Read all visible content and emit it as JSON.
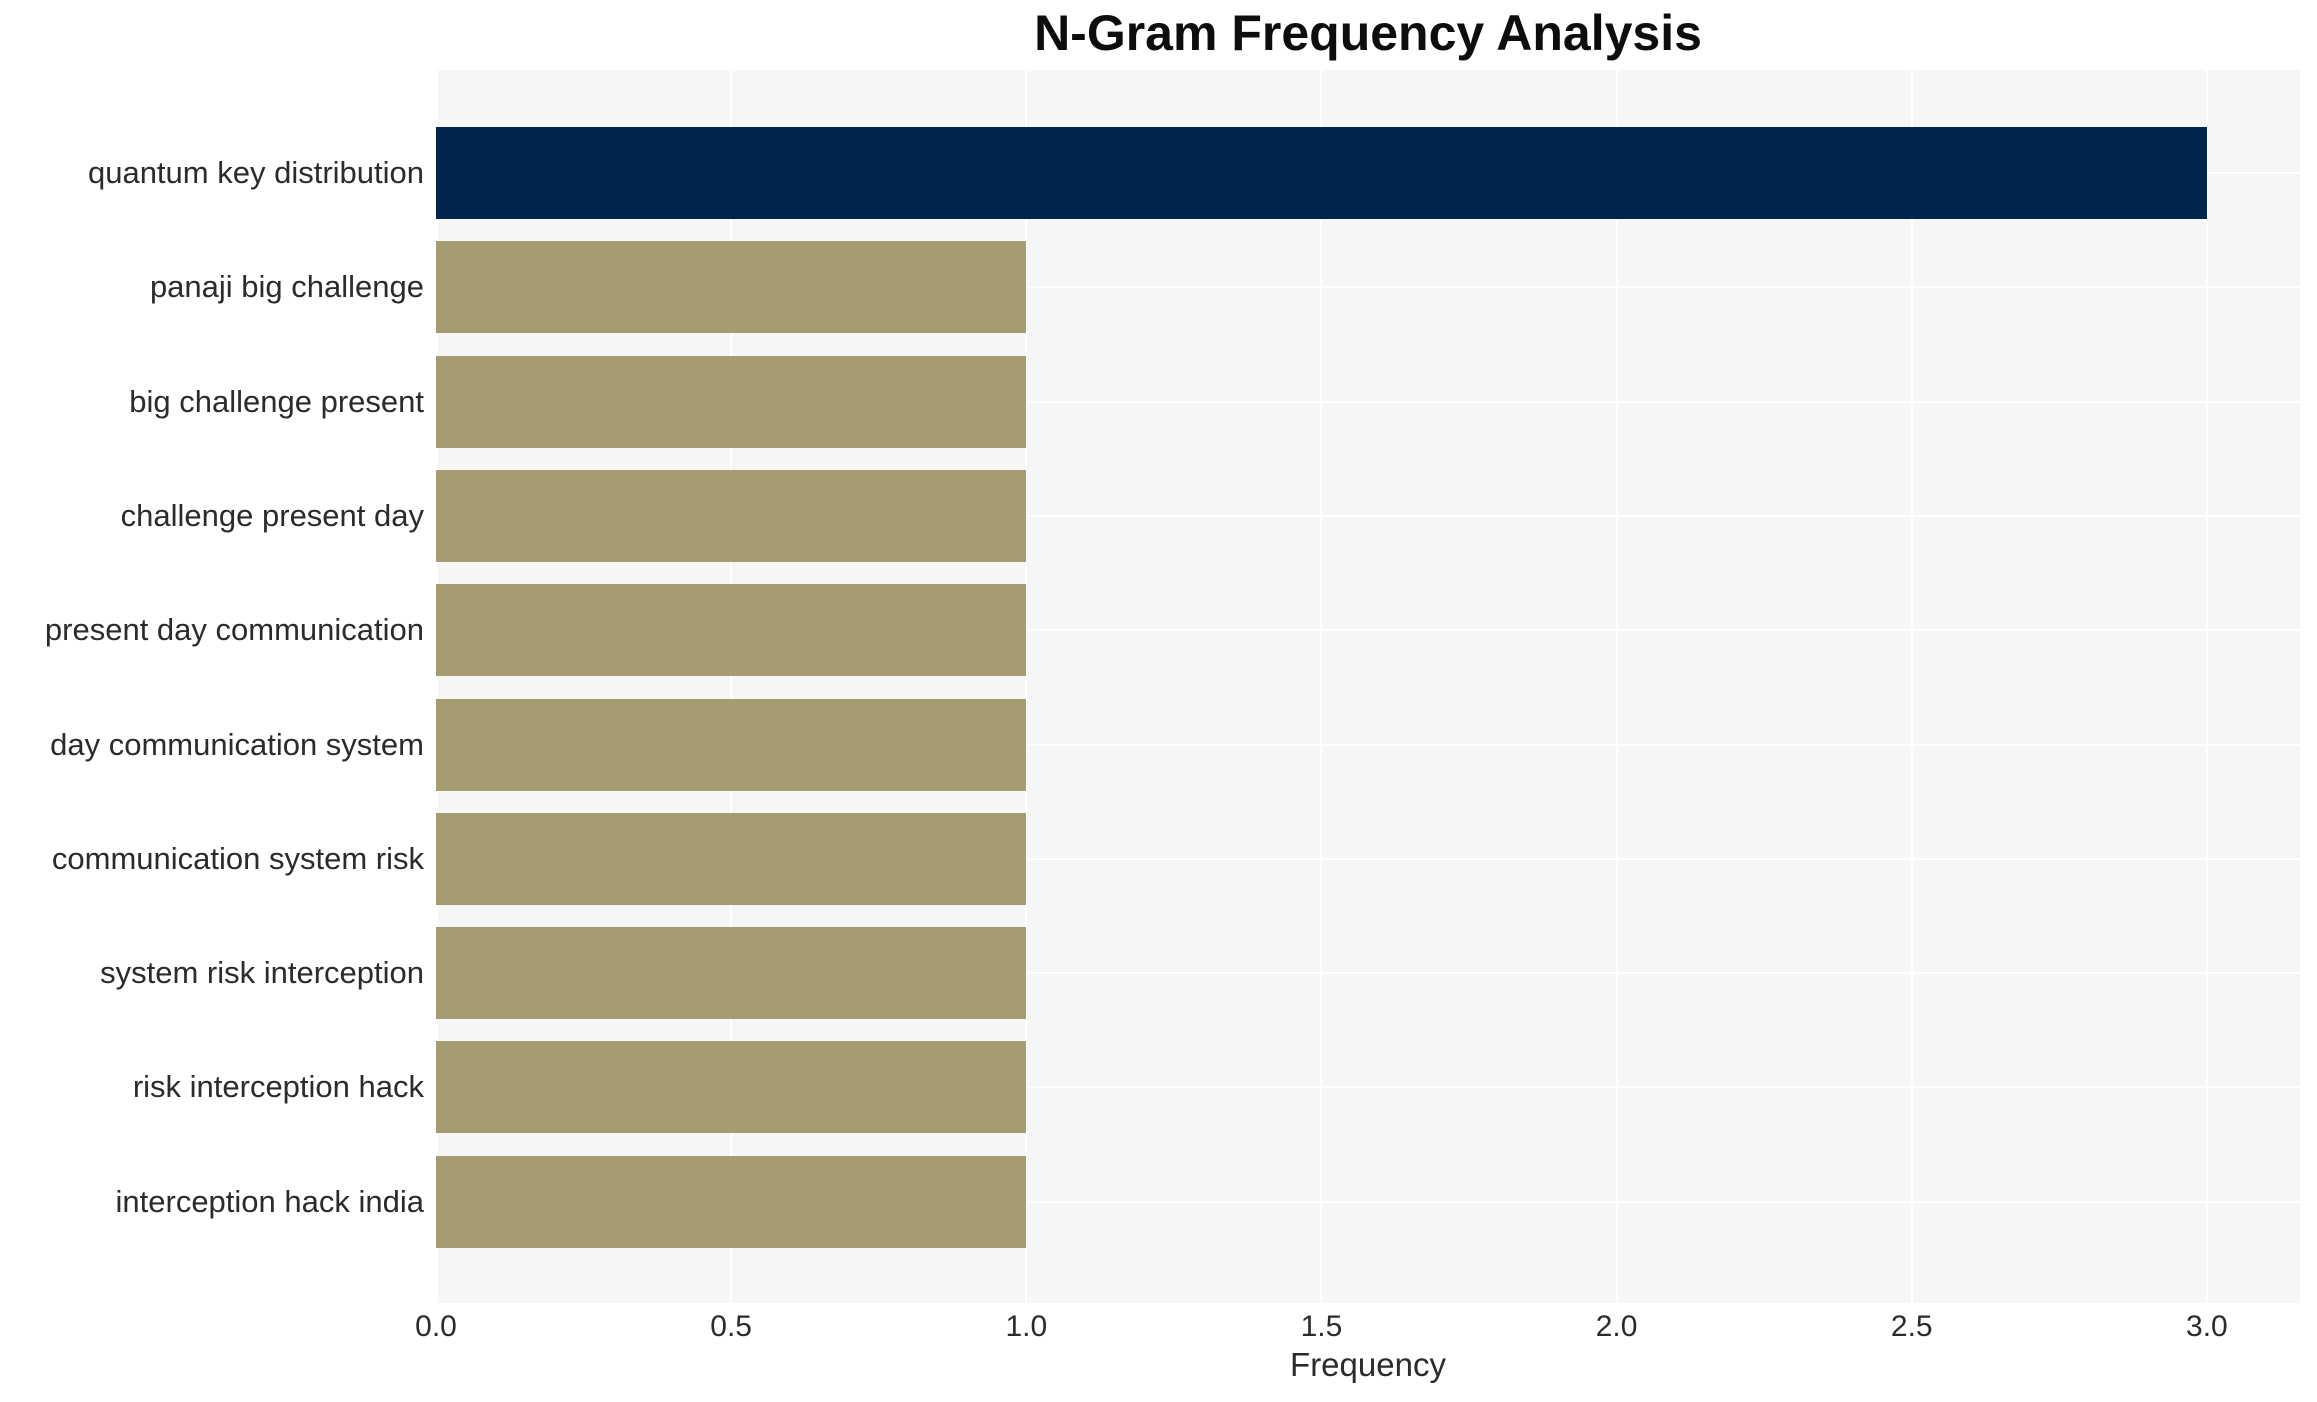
{
  "chart_data": {
    "type": "bar",
    "orientation": "horizontal",
    "title": "N-Gram Frequency Analysis",
    "xlabel": "Frequency",
    "ylabel": "",
    "categories": [
      "quantum key distribution",
      "panaji big challenge",
      "big challenge present",
      "challenge present day",
      "present day communication",
      "day communication system",
      "communication system risk",
      "system risk interception",
      "risk interception hack",
      "interception hack india"
    ],
    "values": [
      3,
      1,
      1,
      1,
      1,
      1,
      1,
      1,
      1,
      1
    ],
    "xticks": [
      0.0,
      0.5,
      1.0,
      1.5,
      2.0,
      2.5,
      3.0
    ],
    "xtick_labels": [
      "0.0",
      "0.5",
      "1.0",
      "1.5",
      "2.0",
      "2.5",
      "3.0"
    ],
    "xlim": [
      0,
      3.16
    ],
    "grid": true,
    "legend": false,
    "bar_colors": [
      "#02254e",
      "#a59d71",
      "#a59d71",
      "#a59d71",
      "#a59d71",
      "#a59d71",
      "#a59d71",
      "#a59d71",
      "#a59d71",
      "#a59d71"
    ],
    "colors": {
      "panel_background": "#f6f6f6",
      "grid_line": "#ffffff",
      "tick_text": "#2b2b2b",
      "title_text": "#0d0d0d"
    }
  }
}
